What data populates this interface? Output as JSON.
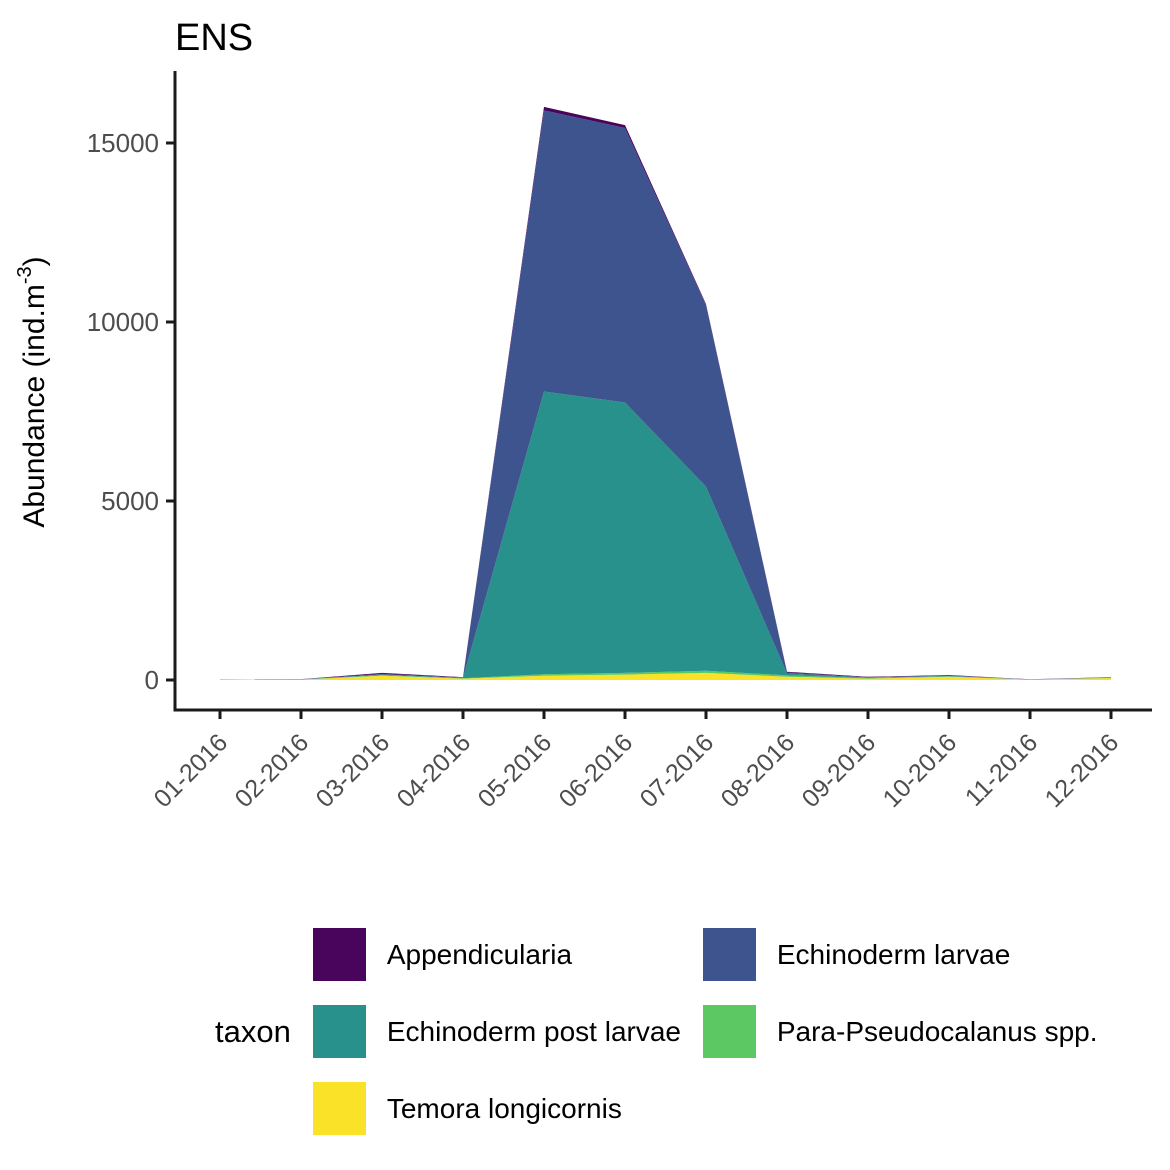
{
  "title": "ENS",
  "axes": {
    "y_label": {
      "main": "Abundance (ind.m",
      "sup": "-3",
      "close": ")"
    },
    "y_ticks": [
      0,
      5000,
      10000,
      15000
    ],
    "x_ticks": [
      "01-2016",
      "02-2016",
      "03-2016",
      "04-2016",
      "05-2016",
      "06-2016",
      "07-2016",
      "08-2016",
      "09-2016",
      "10-2016",
      "11-2016",
      "12-2016"
    ]
  },
  "chart_data": {
    "type": "area",
    "stacked": true,
    "title": "ENS",
    "xlabel": "",
    "ylabel": "Abundance (ind.m-3)",
    "ylim": [
      0,
      16500
    ],
    "grid": false,
    "legend_position": "bottom",
    "x": [
      "01-2016",
      "02-2016",
      "03-2016",
      "04-2016",
      "05-2016",
      "06-2016",
      "07-2016",
      "08-2016",
      "09-2016",
      "10-2016",
      "11-2016",
      "12-2016"
    ],
    "series": [
      {
        "name": "Temora longicornis",
        "color": "#FAE228",
        "values": [
          5,
          10,
          120,
          40,
          120,
          150,
          200,
          90,
          40,
          90,
          10,
          55
        ]
      },
      {
        "name": "Para-Pseudocalanus spp.",
        "color": "#5CC863",
        "values": [
          2,
          4,
          15,
          10,
          40,
          50,
          60,
          40,
          15,
          15,
          3,
          8
        ]
      },
      {
        "name": "Echinoderm post larvae",
        "color": "#28918C",
        "values": [
          1,
          3,
          15,
          10,
          7900,
          7550,
          5140,
          50,
          15,
          10,
          2,
          5
        ]
      },
      {
        "name": "Echinoderm larvae",
        "color": "#3E548F",
        "values": [
          1,
          3,
          20,
          15,
          7850,
          7670,
          5070,
          30,
          10,
          10,
          2,
          5
        ]
      },
      {
        "name": "Appendicularia",
        "color": "#49045C",
        "values": [
          4,
          5,
          30,
          5,
          100,
          80,
          30,
          20,
          10,
          15,
          3,
          7
        ]
      }
    ]
  },
  "legend": {
    "title": "taxon",
    "items": [
      {
        "label": "Appendicularia",
        "color": "#49045C"
      },
      {
        "label": "Echinoderm larvae",
        "color": "#3E548F"
      },
      {
        "label": "Echinoderm post larvae",
        "color": "#28918C"
      },
      {
        "label": "Para-Pseudocalanus spp.",
        "color": "#5CC863"
      },
      {
        "label": "Temora longicornis",
        "color": "#FAE228"
      }
    ]
  },
  "style": {
    "axis_line_color": "#1a1a1a",
    "tick_color": "#333333",
    "tick_label_color": "#4d4d4d",
    "background": "#ffffff"
  }
}
